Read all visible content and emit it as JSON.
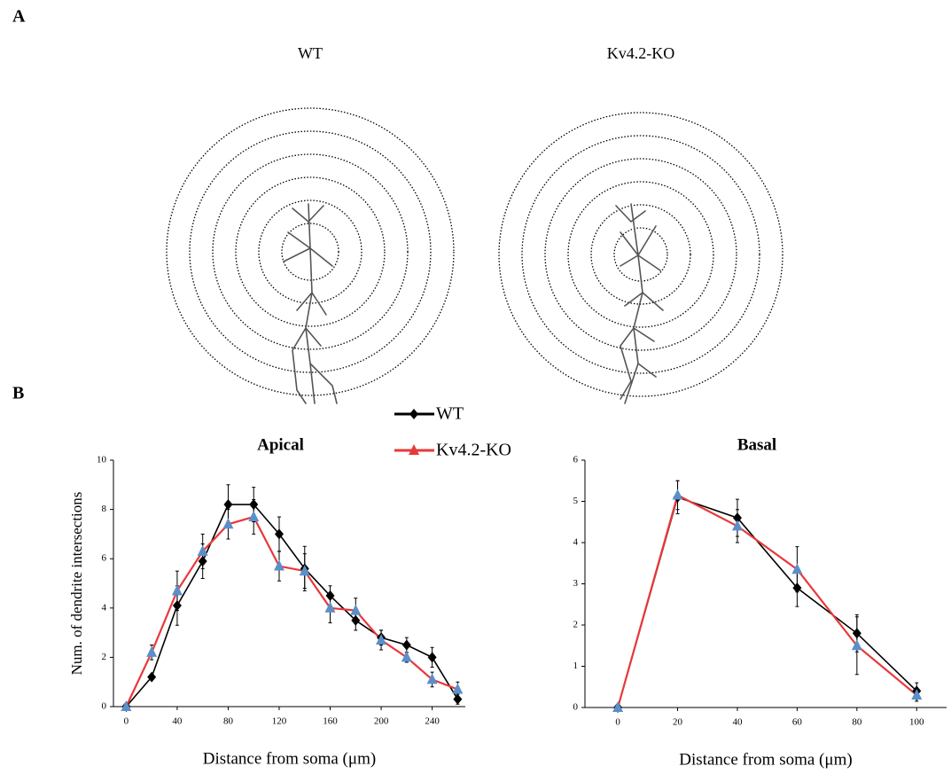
{
  "panels": {
    "a_label": "A",
    "b_label": "B",
    "wt_image_label": "WT",
    "ko_image_label": "Kv4.2-KO"
  },
  "chart_data": [
    {
      "type": "line",
      "title": "Apical",
      "y_label": "Num. of dendrite intersections",
      "x_label": "Distance from soma (μm)",
      "x": [
        0,
        20,
        40,
        60,
        80,
        100,
        120,
        140,
        160,
        180,
        200,
        220,
        240,
        260
      ],
      "xlim": [
        -10,
        266
      ],
      "xticks": [
        0,
        40,
        80,
        120,
        160,
        200,
        240
      ],
      "ylim": [
        0,
        10
      ],
      "yticks": [
        0,
        2,
        4,
        6,
        8,
        10
      ],
      "series": [
        {
          "name": "WT",
          "color": "#000000",
          "marker_color": "#000000",
          "marker": "diamond",
          "values": [
            0,
            1.2,
            4.1,
            5.9,
            8.2,
            8.2,
            7.0,
            5.6,
            4.5,
            3.5,
            2.8,
            2.5,
            2.0,
            0.3
          ],
          "errors": [
            0,
            0.1,
            0.8,
            0.7,
            0.8,
            0.7,
            0.7,
            0.9,
            0.4,
            0.4,
            0.3,
            0.3,
            0.4,
            0.2
          ]
        },
        {
          "name": "Kv4.2-KO",
          "color": "#e8383b",
          "marker_color": "#5b8fc9",
          "marker": "triangle",
          "values": [
            0,
            2.2,
            4.7,
            6.3,
            7.4,
            7.7,
            5.7,
            5.5,
            4.0,
            3.9,
            2.7,
            2.0,
            1.1,
            0.7
          ],
          "errors": [
            0,
            0.3,
            0.8,
            0.7,
            0.6,
            0.7,
            0.6,
            0.7,
            0.6,
            0.5,
            0.4,
            0.2,
            0.3,
            0.3
          ]
        }
      ]
    },
    {
      "type": "line",
      "title": "Basal",
      "x_label": "Distance from soma (μm)",
      "x": [
        0,
        20,
        40,
        60,
        80,
        100
      ],
      "xlim": [
        -11,
        110
      ],
      "xticks": [
        0,
        20,
        40,
        60,
        80,
        100
      ],
      "ylim": [
        0,
        6
      ],
      "yticks": [
        0,
        1,
        2,
        3,
        4,
        5,
        6
      ],
      "series": [
        {
          "color": "#000000",
          "marker_color": "#000000",
          "marker": "diamond",
          "values": [
            0,
            5.1,
            4.6,
            2.9,
            1.8,
            0.4
          ],
          "errors": [
            0,
            0.4,
            0.45,
            0.45,
            0.45,
            0.2
          ]
        },
        {
          "color": "#e8383b",
          "marker_color": "#5b8fc9",
          "marker": "triangle",
          "values": [
            0,
            5.15,
            4.4,
            3.35,
            1.5,
            0.3
          ],
          "errors": [
            0,
            0.35,
            0.4,
            0.55,
            0.7,
            0.15
          ]
        }
      ]
    }
  ]
}
